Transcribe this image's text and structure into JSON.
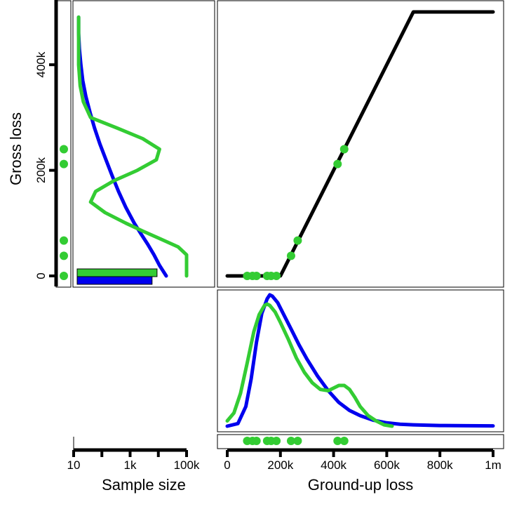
{
  "chart_data": {
    "type": "composite",
    "colors": {
      "series_a": "#0000ee",
      "series_b": "#33cc33",
      "mapping": "#000000",
      "frame": "#000000"
    },
    "y_axis": {
      "label": "Gross loss",
      "ticks": [
        0,
        200000,
        400000
      ],
      "tick_labels": [
        "0",
        "200k",
        "400k"
      ],
      "range": [
        0,
        500000
      ]
    },
    "x_axis": {
      "label": "Ground-up loss",
      "ticks": [
        0,
        200000,
        400000,
        600000,
        800000,
        1000000
      ],
      "tick_labels": [
        "0",
        "200k",
        "400k",
        "600k",
        "800k",
        "1m"
      ],
      "range": [
        0,
        1000000
      ]
    },
    "sample_axis": {
      "label": "Sample size",
      "scale": "log",
      "ticks": [
        10,
        100,
        1000,
        10000,
        100000
      ],
      "tick_labels": [
        "10",
        "",
        "1k",
        "",
        "100k"
      ],
      "range": [
        10,
        100000
      ]
    },
    "sample_size_bars": [
      {
        "series": "series_b",
        "value": 9000
      },
      {
        "series": "series_a",
        "value": 6000
      }
    ],
    "observed_ground_up": [
      75000,
      95000,
      110000,
      150000,
      165000,
      185000,
      240000,
      265000,
      415000,
      440000
    ],
    "observed_gross": [
      0,
      0,
      0,
      0,
      0,
      0,
      38000,
      67000,
      212000,
      240000
    ],
    "mapping_curve": {
      "x": [
        0,
        200000,
        700000,
        1000000
      ],
      "y": [
        0,
        0,
        500000,
        500000
      ]
    },
    "ground_up_density": {
      "series_a": {
        "x": [
          0,
          40000,
          70000,
          90000,
          110000,
          130000,
          150000,
          160000,
          170000,
          190000,
          210000,
          240000,
          270000,
          300000,
          340000,
          380000,
          420000,
          460000,
          500000,
          550000,
          600000,
          650000,
          700000,
          800000,
          900000,
          1000000
        ],
        "y": [
          0,
          0.02,
          0.15,
          0.36,
          0.64,
          0.86,
          0.97,
          1.0,
          0.99,
          0.94,
          0.86,
          0.74,
          0.62,
          0.51,
          0.38,
          0.27,
          0.18,
          0.12,
          0.08,
          0.045,
          0.025,
          0.015,
          0.01,
          0.005,
          0.003,
          0.002
        ]
      },
      "series_b": {
        "x": [
          0,
          25000,
          50000,
          75000,
          100000,
          120000,
          140000,
          150000,
          160000,
          180000,
          200000,
          230000,
          260000,
          290000,
          320000,
          350000,
          380000,
          400000,
          420000,
          440000,
          460000,
          480000,
          500000,
          530000,
          560000,
          590000,
          620000
        ],
        "y": [
          0.04,
          0.1,
          0.25,
          0.48,
          0.72,
          0.85,
          0.92,
          0.93,
          0.92,
          0.87,
          0.79,
          0.66,
          0.52,
          0.41,
          0.33,
          0.28,
          0.27,
          0.29,
          0.31,
          0.31,
          0.28,
          0.22,
          0.15,
          0.08,
          0.04,
          0.01,
          0.0
        ]
      }
    },
    "gross_density": {
      "series_a": {
        "gross": [
          0,
          20000,
          40000,
          60000,
          80000,
          100000,
          130000,
          160000,
          190000,
          220000,
          250000,
          280000,
          310000,
          340000,
          370000,
          400000,
          430000,
          460000,
          490000
        ],
        "sample": [
          19000,
          11000,
          7000,
          4200,
          2400,
          1400,
          700,
          390,
          230,
          140,
          85,
          55,
          38,
          27,
          21,
          18,
          16,
          15,
          15
        ]
      },
      "series_b": {
        "gross": [
          0,
          40000,
          55000,
          70000,
          85000,
          100000,
          120000,
          140000,
          160000,
          180000,
          200000,
          220000,
          240000,
          260000,
          280000,
          300000,
          330000,
          360000,
          400000,
          440000,
          490000
        ],
        "sample": [
          100000,
          100000,
          50000,
          12000,
          2800,
          700,
          130,
          40,
          60,
          260,
          1800,
          8500,
          11000,
          2800,
          350,
          40,
          22,
          17,
          15,
          15,
          15
        ]
      }
    }
  }
}
